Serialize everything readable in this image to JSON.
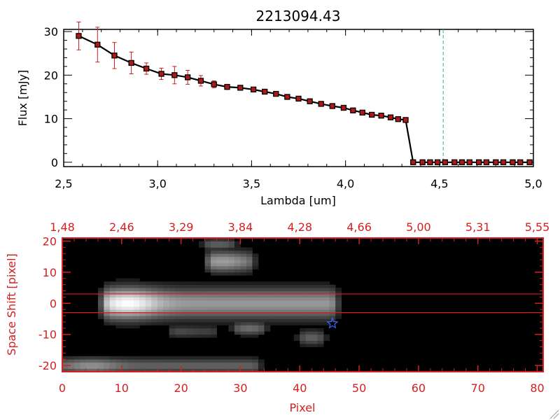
{
  "chart_data": [
    {
      "type": "line",
      "title": "2213094.43",
      "xlabel": "Lambda [um]",
      "ylabel": "Flux [mJy]",
      "xlim": [
        2.5,
        5.0
      ],
      "ylim": [
        -1,
        30.5
      ],
      "xticks": [
        "2.5",
        "3.0",
        "3.5",
        "4.0",
        "4.5",
        "5.0"
      ],
      "yticks": [
        "0",
        "10",
        "20",
        "30"
      ],
      "reference_line_x": 4.52,
      "colors": {
        "line": "#000000",
        "marker": "#b01818",
        "errorbar": "#c81e1e",
        "reference": "#2ab0b0"
      },
      "series": [
        {
          "x": [
            2.58,
            2.68,
            2.77,
            2.86,
            2.94,
            3.02,
            3.09,
            3.16,
            3.23,
            3.3,
            3.37,
            3.44,
            3.51,
            3.57,
            3.63,
            3.69,
            3.75,
            3.81,
            3.87,
            3.93,
            3.99,
            4.04,
            4.09,
            4.14,
            4.19,
            4.24,
            4.28,
            4.32,
            4.36,
            4.41,
            4.45,
            4.49,
            4.53,
            4.58,
            4.62,
            4.66,
            4.71,
            4.75,
            4.8,
            4.84,
            4.89,
            4.93,
            4.98
          ],
          "values": [
            29.0,
            27.0,
            24.5,
            22.8,
            21.5,
            20.3,
            20.0,
            19.5,
            18.7,
            17.9,
            17.3,
            17.1,
            16.7,
            16.2,
            15.7,
            15.0,
            14.6,
            14.0,
            13.4,
            12.9,
            12.5,
            11.9,
            11.4,
            10.9,
            10.7,
            10.3,
            9.9,
            9.7,
            0,
            0,
            0,
            0,
            0,
            0,
            0,
            0,
            0,
            0,
            0,
            0,
            0,
            0,
            0
          ],
          "errors": [
            3.2,
            4.0,
            3.0,
            2.5,
            1.3,
            1.3,
            2.0,
            1.6,
            1.2,
            0.8,
            0.6,
            0.4,
            0.3,
            0.3,
            0.3,
            0.3,
            0.3,
            0.3,
            0.3,
            0.3,
            0.3,
            0.3,
            0.3,
            0.3,
            0.3,
            0.3,
            0.3,
            0.3,
            0,
            0,
            0,
            0,
            0,
            0,
            0,
            0,
            0,
            0,
            0,
            0,
            0,
            0,
            0
          ]
        }
      ]
    },
    {
      "type": "heatmap",
      "xlabel": "Pixel",
      "ylabel": "Space Shift [pixel]",
      "xlim": [
        0,
        81
      ],
      "ylim": [
        -22,
        21
      ],
      "xticks": [
        "0",
        "10",
        "20",
        "30",
        "40",
        "50",
        "60",
        "70",
        "80"
      ],
      "yticks": [
        "-20",
        "-10",
        "0",
        "10",
        "20"
      ],
      "top_axis_ticks": [
        "1.48",
        "2.46",
        "3.29",
        "3.84",
        "4.28",
        "4.66",
        "5.00",
        "5.31",
        "5.55"
      ],
      "extraction_window": [
        3,
        -3
      ],
      "source_marker": {
        "x": 45.5,
        "y": -6.5,
        "symbol": "star"
      },
      "colors": {
        "axes": "#d42020",
        "marker": "#3a66ff",
        "background": "#000000"
      },
      "emission": [
        {
          "x0": 8.0,
          "x1": 45.0,
          "y": 0.0,
          "peak_x": 11.0,
          "peak": 1.0,
          "tail": 0.52,
          "sx": 3.5,
          "sy": 3.2
        },
        {
          "x0": 25.5,
          "x1": 31.0,
          "y": 13.5,
          "peak_x": 27.0,
          "peak": 0.55,
          "tail": 0.35,
          "sx": 2.5,
          "sy": 2.2
        },
        {
          "x0": 0.0,
          "x1": 32.0,
          "y": -20.0,
          "peak_x": 5.0,
          "peak": 0.5,
          "tail": 0.3,
          "sx": 3.0,
          "sy": 1.6
        },
        {
          "x0": 30.0,
          "x1": 33.0,
          "y": -8.0,
          "peak_x": 31.5,
          "peak": 0.35,
          "tail": 0.3,
          "sx": 1.2,
          "sy": 1.4
        },
        {
          "x0": 41.0,
          "x1": 43.0,
          "y": -11.0,
          "peak_x": 42.0,
          "peak": 0.3,
          "tail": 0.25,
          "sx": 1.0,
          "sy": 1.6
        },
        {
          "x0": 19.0,
          "x1": 25.0,
          "y": -9.0,
          "peak_x": 20.0,
          "peak": 0.22,
          "tail": 0.18,
          "sx": 1.5,
          "sy": 1.3
        },
        {
          "x0": 25.0,
          "x1": 28.0,
          "y": 19.0,
          "peak_x": 26.0,
          "peak": 0.3,
          "tail": 0.25,
          "sx": 1.5,
          "sy": 1.2
        }
      ]
    }
  ]
}
